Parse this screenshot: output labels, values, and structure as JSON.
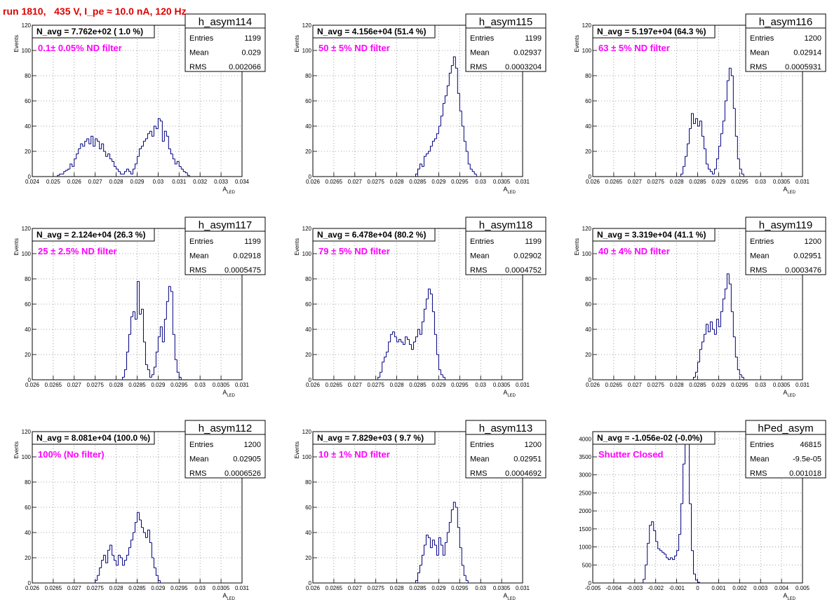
{
  "header": {
    "run_title": "run 1810,   435 V, I_pe ≈ 10.0 nA, 120 Hz"
  },
  "colors": {
    "histogram_line": "#00007f",
    "filter_label": "#ff00ff",
    "header": "#e00000",
    "grid": "#8a8a8a"
  },
  "chart_data": [
    {
      "type": "histogram",
      "name": "h_asym114",
      "title": "N_avg = 7.762e+02 ( 1.0 %)",
      "annotation": "0.1± 0.05% ND filter",
      "stats": [
        [
          "Entries",
          "1199"
        ],
        [
          "Mean",
          "0.029"
        ],
        [
          "RMS",
          "0.002066"
        ]
      ],
      "xlabel": "A",
      "xlabel_sub": "LED",
      "ylabel": "Events",
      "xlim": [
        0.024,
        0.034
      ],
      "ylim": [
        0,
        120
      ],
      "xticks": [
        0.024,
        0.025,
        0.026,
        0.027,
        0.028,
        0.029,
        0.03,
        0.031,
        0.032,
        0.033,
        0.034
      ],
      "xtick_labels": [
        "0.024",
        "0.025",
        "0.026",
        "0.027",
        "0.028",
        "0.029",
        "0.03",
        "0.031",
        "0.032",
        "0.033",
        "0.034"
      ],
      "yticks": [
        0,
        20,
        40,
        60,
        80,
        100,
        120
      ],
      "ytick_labels": [
        "0",
        "20",
        "40",
        "60",
        "80",
        "100",
        "120"
      ],
      "bin_start": 0.0252,
      "bin_width": 0.0001,
      "counts": [
        1,
        2,
        2,
        4,
        5,
        6,
        10,
        8,
        14,
        18,
        22,
        26,
        24,
        28,
        30,
        26,
        32,
        24,
        30,
        28,
        22,
        26,
        20,
        16,
        18,
        14,
        12,
        8,
        6,
        4,
        2,
        2,
        4,
        6,
        4,
        2,
        6,
        10,
        16,
        22,
        24,
        28,
        30,
        34,
        36,
        32,
        40,
        38,
        46,
        44,
        28,
        36,
        32,
        22,
        18,
        14,
        10,
        12,
        8,
        6,
        4,
        3,
        1
      ]
    },
    {
      "type": "histogram",
      "name": "h_asym115",
      "title": "N_avg = 4.156e+04 (51.4 %)",
      "annotation": "50 ± 5% ND filter",
      "stats": [
        [
          "Entries",
          "1199"
        ],
        [
          "Mean",
          "0.02937"
        ],
        [
          "RMS",
          "0.0003204"
        ]
      ],
      "xlabel": "A",
      "xlabel_sub": "LED",
      "ylabel": "Events",
      "xlim": [
        0.026,
        0.031
      ],
      "ylim": [
        0,
        120
      ],
      "xticks": [
        0.026,
        0.0265,
        0.027,
        0.0275,
        0.028,
        0.0285,
        0.029,
        0.0295,
        0.03,
        0.0305,
        0.031
      ],
      "xtick_labels": [
        "0.026",
        "0.0265",
        "0.027",
        "0.0275",
        "0.028",
        "0.0285",
        "0.029",
        "0.0295",
        "0.03",
        "0.0305",
        "0.031"
      ],
      "yticks": [
        0,
        20,
        40,
        60,
        80,
        100,
        120
      ],
      "ytick_labels": [
        "0",
        "20",
        "40",
        "60",
        "80",
        "100",
        "120"
      ],
      "bin_start": 0.02845,
      "bin_width": 5e-05,
      "counts": [
        2,
        6,
        10,
        8,
        16,
        18,
        20,
        24,
        28,
        30,
        34,
        40,
        48,
        58,
        64,
        72,
        82,
        88,
        95,
        86,
        66,
        52,
        40,
        28,
        20,
        10,
        6,
        4,
        2
      ]
    },
    {
      "type": "histogram",
      "name": "h_asym116",
      "title": "N_avg = 5.197e+04 (64.3 %)",
      "annotation": "63 ± 5% ND filter",
      "stats": [
        [
          "Entries",
          "1200"
        ],
        [
          "Mean",
          "0.02914"
        ],
        [
          "RMS",
          "0.0005931"
        ]
      ],
      "xlabel": "A",
      "xlabel_sub": "LED",
      "ylabel": "Events",
      "xlim": [
        0.026,
        0.031
      ],
      "ylim": [
        0,
        120
      ],
      "xticks": [
        0.026,
        0.0265,
        0.027,
        0.0275,
        0.028,
        0.0285,
        0.029,
        0.0295,
        0.03,
        0.0305,
        0.031
      ],
      "xtick_labels": [
        "0.026",
        "0.0265",
        "0.027",
        "0.0275",
        "0.028",
        "0.0285",
        "0.029",
        "0.0295",
        "0.03",
        "0.0305",
        "0.031"
      ],
      "yticks": [
        0,
        20,
        40,
        60,
        80,
        100,
        120
      ],
      "ytick_labels": [
        "0",
        "20",
        "40",
        "60",
        "80",
        "100",
        "120"
      ],
      "bin_start": 0.0281,
      "bin_width": 5e-05,
      "counts": [
        2,
        8,
        16,
        26,
        38,
        50,
        42,
        46,
        40,
        44,
        32,
        22,
        10,
        6,
        4,
        2,
        6,
        14,
        24,
        34,
        44,
        60,
        76,
        86,
        80,
        54,
        32,
        14,
        6,
        2
      ]
    },
    {
      "type": "histogram",
      "name": "h_asym117",
      "title": "N_avg = 2.124e+04 (26.3 %)",
      "annotation": "25 ± 2.5% ND filter",
      "stats": [
        [
          "Entries",
          "1199"
        ],
        [
          "Mean",
          "0.02918"
        ],
        [
          "RMS",
          "0.0005475"
        ]
      ],
      "xlabel": "A",
      "xlabel_sub": "LED",
      "ylabel": "Events",
      "xlim": [
        0.026,
        0.031
      ],
      "ylim": [
        0,
        120
      ],
      "xticks": [
        0.026,
        0.0265,
        0.027,
        0.0275,
        0.028,
        0.0285,
        0.029,
        0.0295,
        0.03,
        0.0305,
        0.031
      ],
      "xtick_labels": [
        "0.026",
        "0.0265",
        "0.027",
        "0.0275",
        "0.028",
        "0.0285",
        "0.029",
        "0.0295",
        "0.03",
        "0.0305",
        "0.031"
      ],
      "yticks": [
        0,
        20,
        40,
        60,
        80,
        100,
        120
      ],
      "ytick_labels": [
        "0",
        "20",
        "40",
        "60",
        "80",
        "100",
        "120"
      ],
      "bin_start": 0.02815,
      "bin_width": 5e-05,
      "counts": [
        2,
        8,
        22,
        36,
        50,
        54,
        48,
        78,
        52,
        56,
        30,
        12,
        8,
        2,
        4,
        10,
        22,
        34,
        42,
        30,
        48,
        62,
        74,
        70,
        36,
        16,
        6,
        2
      ]
    },
    {
      "type": "histogram",
      "name": "h_asym118",
      "title": "N_avg = 6.478e+04 (80.2 %)",
      "annotation": "79 ± 5% ND filter",
      "stats": [
        [
          "Entries",
          "1199"
        ],
        [
          "Mean",
          "0.02902"
        ],
        [
          "RMS",
          "0.0004752"
        ]
      ],
      "xlabel": "A",
      "xlabel_sub": "LED",
      "ylabel": "Events",
      "xlim": [
        0.026,
        0.031
      ],
      "ylim": [
        0,
        120
      ],
      "xticks": [
        0.026,
        0.0265,
        0.027,
        0.0275,
        0.028,
        0.0285,
        0.029,
        0.0295,
        0.03,
        0.0305,
        0.031
      ],
      "xtick_labels": [
        "0.026",
        "0.0265",
        "0.027",
        "0.0275",
        "0.028",
        "0.0285",
        "0.029",
        "0.0295",
        "0.03",
        "0.0305",
        "0.031"
      ],
      "yticks": [
        0,
        20,
        40,
        60,
        80,
        100,
        120
      ],
      "ytick_labels": [
        "0",
        "20",
        "40",
        "60",
        "80",
        "100",
        "120"
      ],
      "bin_start": 0.02755,
      "bin_width": 5e-05,
      "counts": [
        2,
        6,
        14,
        18,
        22,
        30,
        36,
        38,
        34,
        30,
        32,
        30,
        28,
        34,
        32,
        28,
        24,
        30,
        34,
        40,
        36,
        46,
        56,
        64,
        72,
        68,
        54,
        36,
        20,
        8,
        4,
        2
      ]
    },
    {
      "type": "histogram",
      "name": "h_asym119",
      "title": "N_avg = 3.319e+04 (41.1 %)",
      "annotation": "40 ± 4% ND filter",
      "stats": [
        [
          "Entries",
          "1200"
        ],
        [
          "Mean",
          "0.02951"
        ],
        [
          "RMS",
          "0.0003476"
        ]
      ],
      "xlabel": "A",
      "xlabel_sub": "LED",
      "ylabel": "Events",
      "xlim": [
        0.026,
        0.031
      ],
      "ylim": [
        0,
        120
      ],
      "xticks": [
        0.026,
        0.0265,
        0.027,
        0.0275,
        0.028,
        0.0285,
        0.029,
        0.0295,
        0.03,
        0.0305,
        0.031
      ],
      "xtick_labels": [
        "0.026",
        "0.0265",
        "0.027",
        "0.0275",
        "0.028",
        "0.0285",
        "0.029",
        "0.0295",
        "0.03",
        "0.0305",
        "0.031"
      ],
      "yticks": [
        0,
        20,
        40,
        60,
        80,
        100,
        120
      ],
      "ytick_labels": [
        "0",
        "20",
        "40",
        "60",
        "80",
        "100",
        "120"
      ],
      "bin_start": 0.0284,
      "bin_width": 5e-05,
      "counts": [
        2,
        6,
        14,
        24,
        30,
        36,
        44,
        38,
        46,
        40,
        36,
        48,
        42,
        54,
        64,
        72,
        84,
        76,
        54,
        34,
        18,
        8,
        4,
        2
      ]
    },
    {
      "type": "histogram",
      "name": "h_asym112",
      "title": "N_avg = 8.081e+04 (100.0 %)",
      "annotation": "100% (No filter)",
      "stats": [
        [
          "Entries",
          "1200"
        ],
        [
          "Mean",
          "0.02905"
        ],
        [
          "RMS",
          "0.0006526"
        ]
      ],
      "xlabel": "A",
      "xlabel_sub": "LED",
      "ylabel": "Events",
      "xlim": [
        0.026,
        0.031
      ],
      "ylim": [
        0,
        120
      ],
      "xticks": [
        0.026,
        0.0265,
        0.027,
        0.0275,
        0.028,
        0.0285,
        0.029,
        0.0295,
        0.03,
        0.0305,
        0.031
      ],
      "xtick_labels": [
        "0.026",
        "0.0265",
        "0.027",
        "0.0275",
        "0.028",
        "0.0285",
        "0.029",
        "0.0295",
        "0.03",
        "0.0305",
        "0.031"
      ],
      "yticks": [
        0,
        20,
        40,
        60,
        80,
        100,
        120
      ],
      "ytick_labels": [
        "0",
        "20",
        "40",
        "60",
        "80",
        "100",
        "120"
      ],
      "bin_start": 0.0275,
      "bin_width": 5e-05,
      "counts": [
        2,
        6,
        12,
        18,
        22,
        16,
        26,
        30,
        22,
        18,
        14,
        22,
        20,
        14,
        18,
        22,
        28,
        34,
        40,
        48,
        56,
        50,
        44,
        40,
        36,
        42,
        32,
        20,
        12,
        6,
        2
      ]
    },
    {
      "type": "histogram",
      "name": "h_asym113",
      "title": "N_avg = 7.829e+03 ( 9.7 %)",
      "annotation": "10 ± 1% ND filter",
      "stats": [
        [
          "Entries",
          "1200"
        ],
        [
          "Mean",
          "0.02951"
        ],
        [
          "RMS",
          "0.0004692"
        ]
      ],
      "xlabel": "A",
      "xlabel_sub": "LED",
      "ylabel": "Events",
      "xlim": [
        0.026,
        0.031
      ],
      "ylim": [
        0,
        120
      ],
      "xticks": [
        0.026,
        0.0265,
        0.027,
        0.0275,
        0.028,
        0.0285,
        0.029,
        0.0295,
        0.03,
        0.0305,
        0.031
      ],
      "xtick_labels": [
        "0.026",
        "0.0265",
        "0.027",
        "0.0275",
        "0.028",
        "0.0285",
        "0.029",
        "0.0295",
        "0.03",
        "0.0305",
        "0.031"
      ],
      "yticks": [
        0,
        20,
        40,
        60,
        80,
        100,
        120
      ],
      "ytick_labels": [
        "0",
        "20",
        "40",
        "60",
        "80",
        "100",
        "120"
      ],
      "bin_start": 0.02845,
      "bin_width": 5e-05,
      "counts": [
        2,
        8,
        14,
        22,
        30,
        38,
        36,
        28,
        34,
        30,
        22,
        36,
        30,
        22,
        32,
        40,
        48,
        58,
        64,
        60,
        44,
        28,
        14,
        6,
        2
      ]
    },
    {
      "type": "histogram",
      "name": "hPed_asym",
      "title": "N_avg = -1.056e-02 (-0.0%)",
      "annotation": "Shutter Closed",
      "stats": [
        [
          "Entries",
          "46815"
        ],
        [
          "Mean",
          "-9.5e-05"
        ],
        [
          "RMS",
          "0.001018"
        ]
      ],
      "xlabel": "A",
      "xlabel_sub": "LED",
      "ylabel": "",
      "xlim": [
        -0.005,
        0.005
      ],
      "ylim": [
        0,
        4200
      ],
      "xticks": [
        -0.005,
        -0.004,
        -0.003,
        -0.002,
        -0.001,
        0,
        0.001,
        0.002,
        0.003,
        0.004,
        0.005
      ],
      "xtick_labels": [
        "-0.005",
        "-0.004",
        "-0.003",
        "-0.002",
        "-0.001",
        "0",
        "0.001",
        "0.002",
        "0.003",
        "0.004",
        "0.005"
      ],
      "yticks": [
        0,
        500,
        1000,
        1500,
        2000,
        2500,
        3000,
        3500,
        4000
      ],
      "ytick_labels": [
        "0",
        "500",
        "1000",
        "1500",
        "2000",
        "2500",
        "3000",
        "3500",
        "4000"
      ],
      "bin_start": -0.0026,
      "bin_width": 0.0001,
      "counts": [
        100,
        500,
        1100,
        1600,
        1700,
        1450,
        1150,
        950,
        900,
        850,
        800,
        700,
        650,
        700,
        650,
        750,
        900,
        1350,
        2200,
        3300,
        4100,
        3900,
        2200,
        900,
        250,
        80,
        20
      ]
    }
  ]
}
